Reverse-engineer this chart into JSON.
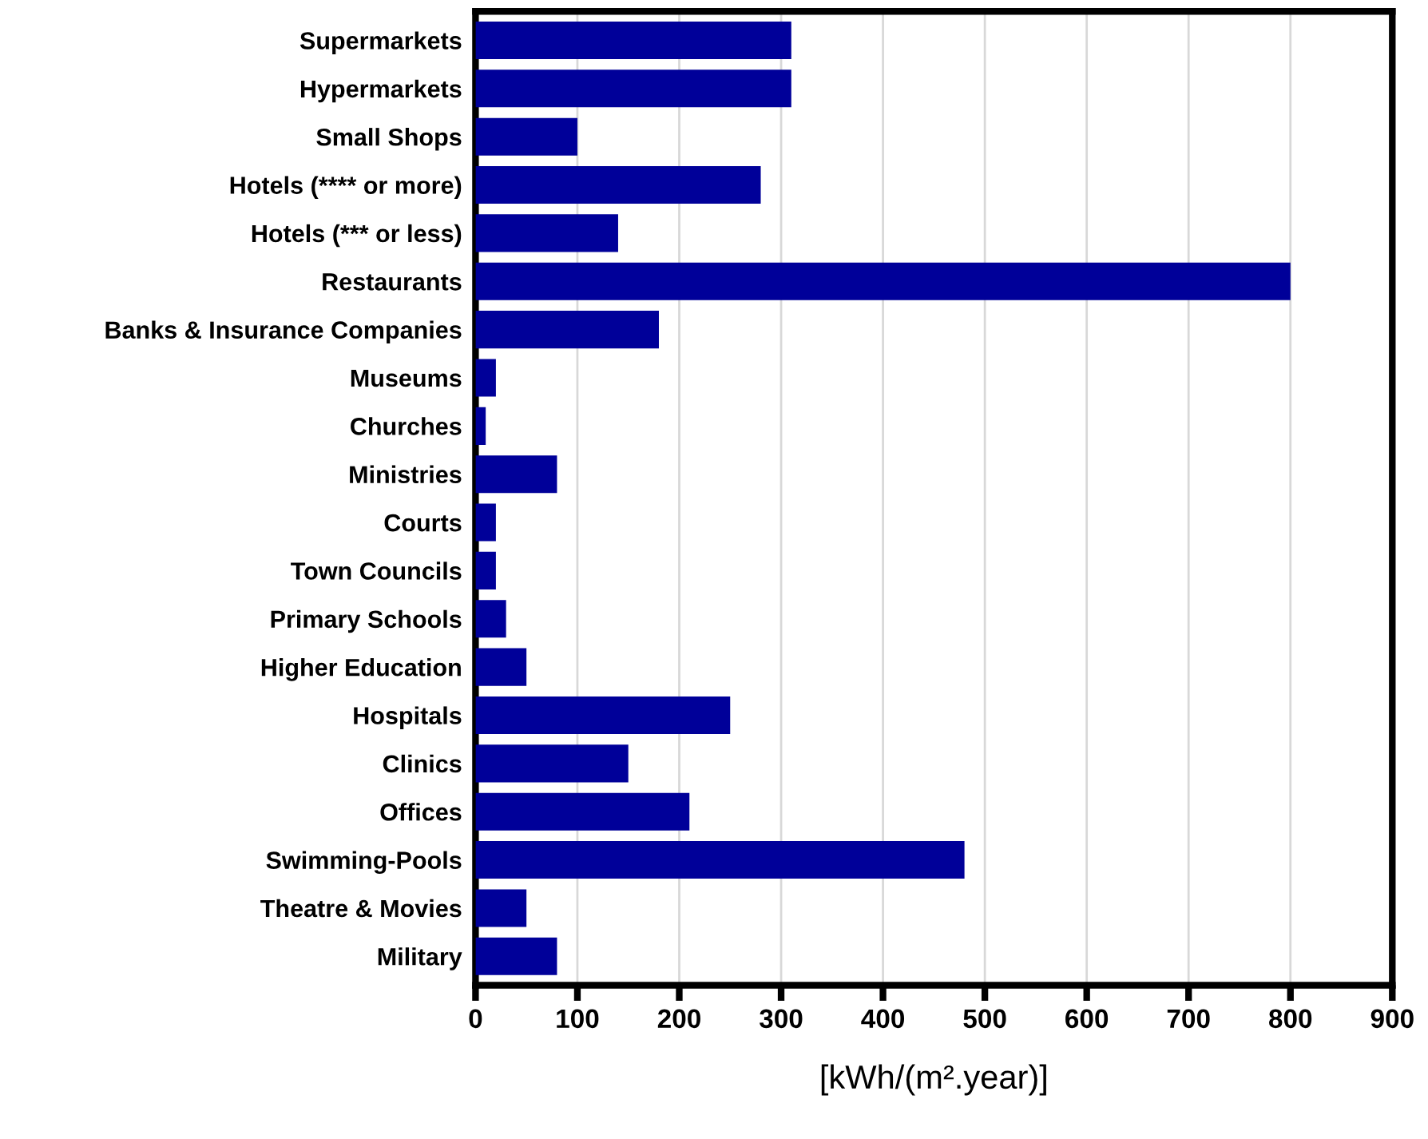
{
  "chart_data": {
    "type": "bar",
    "orientation": "horizontal",
    "xlabel": "[kWh/(m².year)]",
    "categories": [
      "Supermarkets",
      "Hypermarkets",
      "Small Shops",
      "Hotels (**** or more)",
      "Hotels (*** or less)",
      "Restaurants",
      "Banks & Insurance Companies",
      "Museums",
      "Churches",
      "Ministries",
      "Courts",
      "Town Councils",
      "Primary Schools",
      "Higher Education",
      "Hospitals",
      "Clinics",
      "Offices",
      "Swimming-Pools",
      "Theatre & Movies",
      "Military"
    ],
    "values": [
      310,
      310,
      100,
      280,
      140,
      800,
      180,
      20,
      10,
      80,
      20,
      20,
      30,
      50,
      250,
      150,
      210,
      480,
      50,
      80
    ],
    "color": "#000099",
    "xlim": [
      0,
      900
    ],
    "xticks": [
      0,
      100,
      200,
      300,
      400,
      500,
      600,
      700,
      800,
      900
    ],
    "grid": "x",
    "legend": false
  }
}
